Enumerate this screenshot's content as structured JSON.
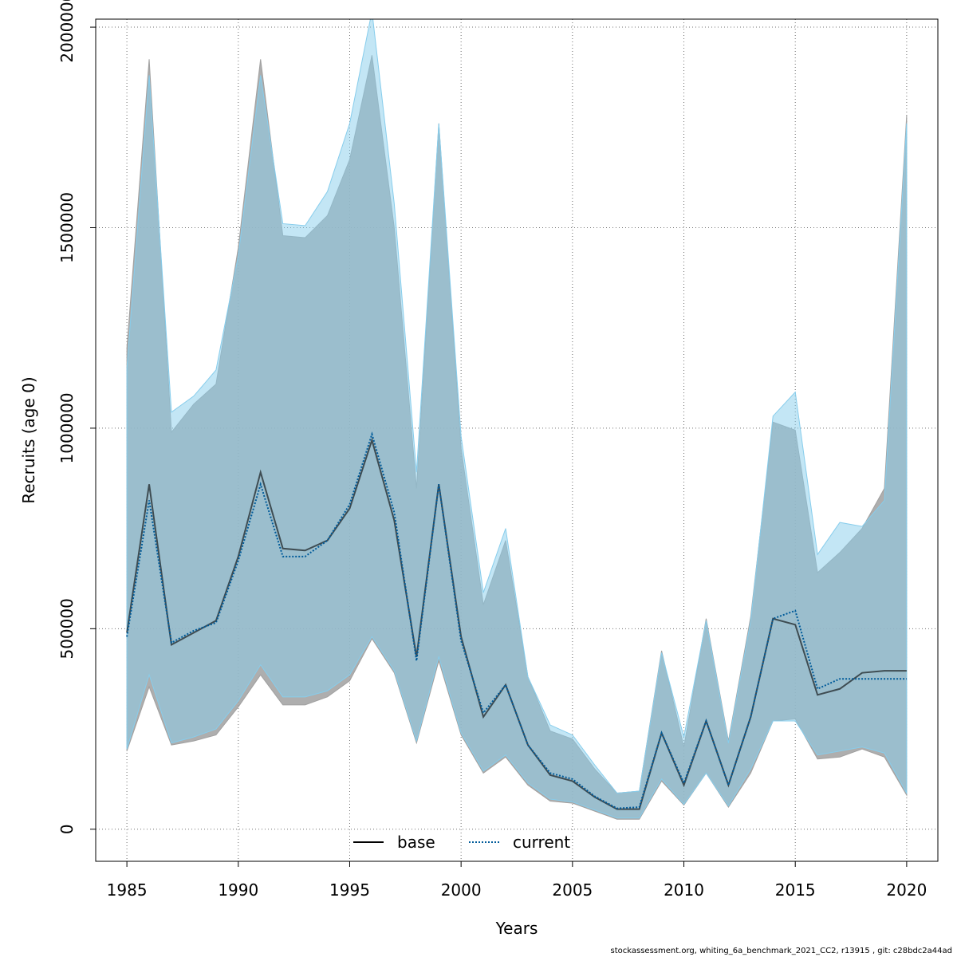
{
  "chart_data": {
    "type": "area",
    "xlabel": "Years",
    "ylabel": "Recruits (age 0)",
    "xlim": [
      1983.6,
      2021.4
    ],
    "ylim": [
      -80000,
      2020000
    ],
    "xticks": [
      1985,
      1990,
      1995,
      2000,
      2005,
      2010,
      2015,
      2020
    ],
    "yticks": [
      0,
      500000,
      1000000,
      1500000,
      2000000
    ],
    "grid": true,
    "legend_position": "bottom-center",
    "x": [
      1985,
      1986,
      1987,
      1988,
      1989,
      1990,
      1991,
      1992,
      1993,
      1994,
      1995,
      1996,
      1997,
      1998,
      1999,
      2000,
      2001,
      2002,
      2003,
      2004,
      2005,
      2006,
      2007,
      2008,
      2009,
      2010,
      2011,
      2012,
      2013,
      2014,
      2015,
      2016,
      2017,
      2018,
      2019,
      2020
    ],
    "series": [
      {
        "name": "base",
        "color": "#000000",
        "band_color": "#a0a0a0",
        "dash": "solid",
        "values": [
          490000,
          860000,
          460000,
          490000,
          520000,
          680000,
          890000,
          700000,
          695000,
          720000,
          800000,
          970000,
          770000,
          430000,
          860000,
          480000,
          280000,
          360000,
          210000,
          135000,
          120000,
          80000,
          50000,
          50000,
          240000,
          110000,
          270000,
          110000,
          280000,
          525000,
          510000,
          335000,
          350000,
          390000,
          395000,
          395000
        ],
        "lower": [
          195000,
          355000,
          210000,
          220000,
          235000,
          305000,
          385000,
          310000,
          310000,
          330000,
          370000,
          475000,
          390000,
          215000,
          420000,
          235000,
          140000,
          180000,
          110000,
          70000,
          65000,
          45000,
          25000,
          25000,
          120000,
          60000,
          140000,
          55000,
          140000,
          270000,
          275000,
          175000,
          180000,
          200000,
          180000,
          85000
        ],
        "upper": [
          1200000,
          1920000,
          990000,
          1060000,
          1110000,
          1450000,
          1920000,
          1480000,
          1475000,
          1530000,
          1670000,
          1930000,
          1500000,
          850000,
          1760000,
          950000,
          560000,
          720000,
          380000,
          245000,
          225000,
          150000,
          90000,
          95000,
          445000,
          205000,
          525000,
          220000,
          530000,
          1015000,
          995000,
          640000,
          690000,
          750000,
          850000,
          1780000
        ]
      },
      {
        "name": "current",
        "color": "#005b9a",
        "band_color": "#87cdec",
        "dash": "dotted",
        "values": [
          480000,
          820000,
          465000,
          495000,
          515000,
          670000,
          860000,
          680000,
          680000,
          720000,
          810000,
          985000,
          790000,
          420000,
          860000,
          470000,
          290000,
          360000,
          210000,
          140000,
          125000,
          82000,
          52000,
          55000,
          240000,
          115000,
          270000,
          110000,
          280000,
          525000,
          545000,
          350000,
          375000,
          375000,
          375000,
          375000
        ],
        "lower": [
          200000,
          385000,
          215000,
          230000,
          250000,
          320000,
          410000,
          330000,
          330000,
          345000,
          385000,
          480000,
          395000,
          220000,
          430000,
          240000,
          145000,
          185000,
          115000,
          75000,
          68000,
          48000,
          28000,
          28000,
          125000,
          62000,
          140000,
          58000,
          150000,
          270000,
          270000,
          185000,
          195000,
          205000,
          190000,
          90000
        ],
        "upper": [
          1150000,
          1880000,
          1040000,
          1080000,
          1145000,
          1430000,
          1880000,
          1510000,
          1505000,
          1590000,
          1760000,
          2040000,
          1560000,
          890000,
          1760000,
          980000,
          590000,
          750000,
          380000,
          260000,
          235000,
          160000,
          90000,
          95000,
          440000,
          230000,
          520000,
          215000,
          520000,
          1030000,
          1090000,
          685000,
          765000,
          755000,
          820000,
          1760000
        ]
      }
    ],
    "legend": [
      {
        "label": "base"
      },
      {
        "label": "current"
      }
    ]
  },
  "footer": "stockassessment.org, whiting_6a_benchmark_2021_CC2, r13915 , git: c28bdc2a44ad"
}
